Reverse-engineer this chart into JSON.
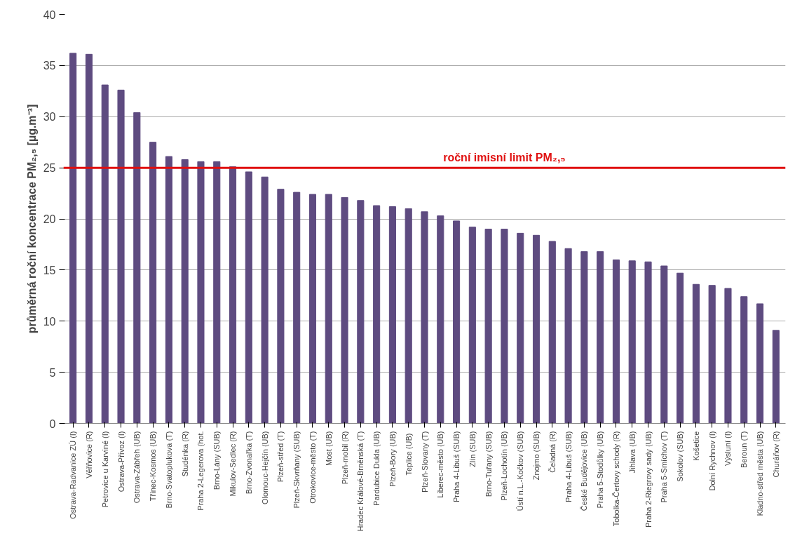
{
  "chart_data": {
    "type": "bar",
    "ylabel": "průměrná roční koncentrace PM₂,₅ [µg.m⁻³]",
    "categories": [
      "Ostrava-Radvanice ZÚ (I)",
      "Věřňovice (R)",
      "Petrovice u Karviné (I)",
      "Ostrava-Přívoz (I)",
      "Ostrava-Zábřeh (UB)",
      "Třinec-Kosmos (UB)",
      "Brno-Svatoplukova (T)",
      "Studénka (R)",
      "Praha 2-Legerova (hot.",
      "Brno-Lány (SUB)",
      "Mikulov-Sedlec (R)",
      "Brno-Zvonařka (T)",
      "Olomouc-Hejčín (UB)",
      "Plzeň-střed (T)",
      "Plzeň-Skvrňany (SUB)",
      "Otrokovice-město (T)",
      "Most (UB)",
      "Plzeň-mobil (R)",
      "Hradec Králové-Brněnská (T)",
      "Pardubice Dukla (UB)",
      "Plzeň-Bory (UB)",
      "Teplice  (UB)",
      "Plzeň-Slovany (T)",
      "Liberec-město (UB)",
      "Praha 4-Libuš (SUB)",
      "Zlín (SUB)",
      "Brno-Tuřany (SUB)",
      "Plzeň-Lochotín (UB)",
      "Ústí n.L.-Kočkov (SUB)",
      "Znojmo (SUB)",
      "Čeladná (R)",
      "Praha 4-Libuš (SUB)",
      "České Budějovice (UB)",
      "Praha 5-Stodůlky (UB)",
      "Tobolka-Čertovy schody (R)",
      "Jihlava (UB)",
      "Praha 2-Riegrovy sady (UB)",
      "Praha 5-Smíchov (T)",
      "Sokolov (SUB)",
      "Košetice",
      "Dolní Rychnov (I)",
      "Výsluní (I)",
      "Beroun (T)",
      "Kladno-střed města (UB)",
      "Churáňov (R)"
    ],
    "values": [
      36.2,
      36.1,
      33.1,
      32.6,
      30.4,
      27.5,
      26.1,
      25.8,
      25.6,
      25.6,
      25.1,
      24.6,
      24.1,
      22.9,
      22.6,
      22.4,
      22.4,
      22.1,
      21.8,
      21.3,
      21.2,
      21.0,
      20.7,
      20.3,
      19.8,
      19.2,
      19.0,
      19.0,
      18.6,
      18.4,
      17.8,
      17.1,
      16.8,
      16.8,
      16.0,
      15.9,
      15.8,
      15.4,
      14.7,
      13.6,
      13.5,
      13.2,
      12.4,
      11.7,
      9.1
    ],
    "color": "#5e4b80",
    "ylim": [
      0,
      40
    ],
    "yticks": [
      0,
      5,
      10,
      15,
      20,
      25,
      30,
      35,
      40
    ],
    "grid": "y",
    "ref_lines": [
      {
        "axis": "y",
        "value": 25,
        "label": "roční imisní limit PM₂,₅",
        "color": "#e01010"
      }
    ]
  }
}
